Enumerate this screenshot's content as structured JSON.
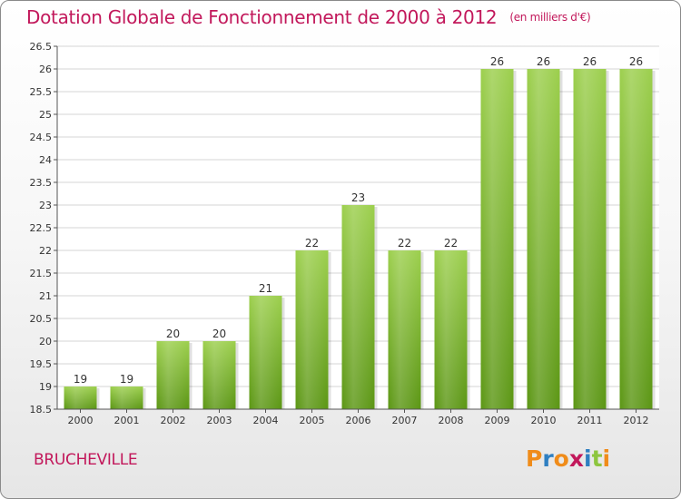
{
  "header": {
    "title": "Dotation Globale de Fonctionnement de 2000 à 2012",
    "unit": "(en milliers d'€)"
  },
  "footer": {
    "commune": "BRUCHEVILLE",
    "logo_text": "Proxiti"
  },
  "colors": {
    "title": "#c2185b",
    "bar_top": "#9ccf4d",
    "bar_bottom": "#5b9614",
    "grid": "#d4d4d4",
    "axis": "#555555",
    "logo_letters": [
      "#f08c1a",
      "#2f7fc1",
      "#f08c1a",
      "#c2185b",
      "#2f7fc1",
      "#8dc63f",
      "#f08c1a"
    ]
  },
  "chart_data": {
    "type": "bar",
    "title": "Dotation Globale de Fonctionnement de 2000 à 2012",
    "subtitle": "(en milliers d'€)",
    "xlabel": "",
    "ylabel": "",
    "categories": [
      "2000",
      "2001",
      "2002",
      "2003",
      "2004",
      "2005",
      "2006",
      "2007",
      "2008",
      "2009",
      "2010",
      "2011",
      "2012"
    ],
    "values": [
      19,
      19,
      20,
      20,
      21,
      22,
      23,
      22,
      22,
      26,
      26,
      26,
      26
    ],
    "ylim": [
      18.5,
      26.5
    ],
    "yticks": [
      "18.5",
      "19",
      "19.5",
      "20",
      "20.5",
      "21",
      "21.5",
      "22",
      "22.5",
      "23",
      "23.5",
      "24",
      "24.5",
      "25",
      "25.5",
      "26",
      "26.5"
    ],
    "grid": true,
    "legend": "none"
  }
}
